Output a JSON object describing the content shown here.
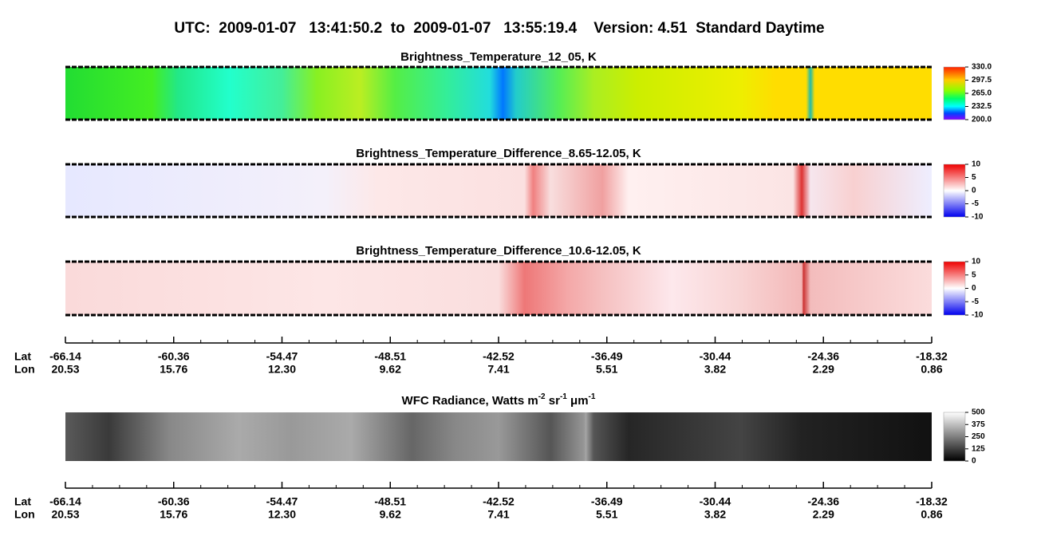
{
  "header": {
    "title": "UTC:  2009-01-07   13:41:50.2  to  2009-01-07   13:55:19.4    Version: 4.51  Standard Daytime"
  },
  "panels": [
    {
      "title": [
        "Brightness_Temperature_12_05, K"
      ],
      "colorbar": {
        "ticks": [
          {
            "value": 330,
            "label": "330.0"
          },
          {
            "value": 297.5,
            "label": "297.5"
          },
          {
            "value": 265,
            "label": "265.0"
          },
          {
            "value": 232.5,
            "label": "232.5"
          },
          {
            "value": 200,
            "label": "200.0"
          }
        ],
        "lim": [
          200,
          330
        ]
      }
    },
    {
      "title": [
        "Brightness_Temperature_Difference_8.65-12.05, K"
      ],
      "colorbar": {
        "ticks": [
          10,
          5,
          0,
          -5,
          -10
        ],
        "lim": [
          -10,
          10
        ]
      }
    },
    {
      "title": [
        "Brightness_Temperature_Difference_10.6-12.05, K"
      ],
      "colorbar": {
        "ticks": [
          10,
          5,
          0,
          -5,
          -10
        ],
        "lim": [
          -10,
          10
        ]
      }
    },
    {
      "title": [
        "WFC Radiance, Watts m",
        "-2",
        " sr",
        "-1",
        " μm",
        "-1"
      ],
      "colorbar": {
        "ticks": [
          500,
          375,
          250,
          125,
          0
        ],
        "lim": [
          0,
          500
        ]
      }
    }
  ],
  "axis": {
    "lat_name": "Lat",
    "lon_name": "Lon",
    "lat": [
      "-66.14",
      "-60.36",
      "-54.47",
      "-48.51",
      "-42.52",
      "-36.49",
      "-30.44",
      "-24.36",
      "-18.32"
    ],
    "lon": [
      "20.53",
      "15.76",
      "12.30",
      "9.62",
      "7.41",
      "5.51",
      "3.82",
      "2.29",
      "0.86"
    ]
  }
}
